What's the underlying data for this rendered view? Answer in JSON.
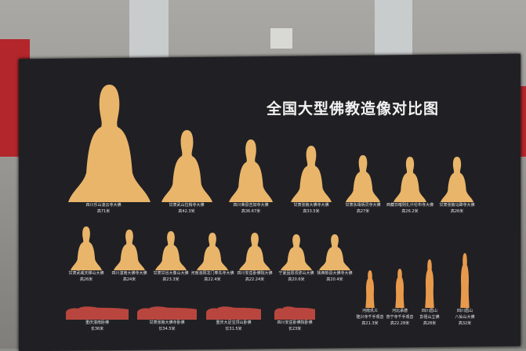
{
  "title": "全国大型佛教造像对比图",
  "colors": {
    "seated": "#e9b56a",
    "standing": "#e89a4c",
    "reclining": "#b8463f",
    "board": "#202024"
  },
  "row1": [
    {
      "name": "四川乐山凌云寺大佛",
      "size": "高71米"
    },
    {
      "name": "甘肃武山拉梢寺大佛",
      "size": "高42.3米"
    },
    {
      "name": "四川荣县吉如寺大佛",
      "size": "高36.67米"
    },
    {
      "name": "甘肃张掖大佛寺大佛",
      "size": "高33.5米"
    },
    {
      "name": "甘肃永靖炳灵寺大佛",
      "size": "高27米"
    },
    {
      "name": "西藏日喀则扎什伦布寺大佛",
      "size": "高26.2米"
    },
    {
      "name": "甘肃张掖马蹄寺大佛",
      "size": "高26米"
    }
  ],
  "row2": [
    {
      "name": "甘肃武威天梯山大佛",
      "size": "高26米"
    },
    {
      "name": "四川潼南大佛寺大佛",
      "size": "高24米"
    },
    {
      "name": "甘肃甘谷大像山大佛",
      "size": "高23.3米"
    },
    {
      "name": "河南洛阳龙门奉先寺大佛",
      "size": "高22.4米"
    },
    {
      "name": "四川安岳卧佛院大佛",
      "size": "高22.24米"
    },
    {
      "name": "宁夏固原须弥山大佛",
      "size": "高20.6米"
    },
    {
      "name": "陕西彬县大佛寺大佛",
      "size": "高20.4米"
    }
  ],
  "reclining": [
    {
      "name": "重庆潼南卧佛",
      "size": "长36米"
    },
    {
      "name": "甘肃张掖大佛寺卧佛",
      "size": "长34.5米"
    },
    {
      "name": "重庆大足宝顶山卧佛",
      "size": "长31.5米"
    },
    {
      "name": "四川安岳卧佛院卧佛",
      "size": "长23米"
    }
  ],
  "standing": [
    {
      "name": "河南巩义",
      "name2": "隆兴寺千手观音",
      "size": "高21.3米"
    },
    {
      "name": "河北承德",
      "name2": "普宁寺千手观音",
      "size": "高22.28米"
    },
    {
      "name": "四川眉山",
      "name2": "彭祖山立佛",
      "size": "高28米"
    },
    {
      "name": "四川眉山",
      "name2": "八仙山大佛",
      "size": "高32米"
    }
  ]
}
